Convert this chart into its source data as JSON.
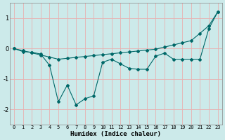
{
  "xlabel": "Humidex (Indice chaleur)",
  "background_color": "#cceaea",
  "grid_color": "#e8b0b0",
  "line_color": "#006868",
  "x_values": [
    0,
    1,
    2,
    3,
    4,
    5,
    6,
    7,
    8,
    9,
    10,
    11,
    12,
    13,
    14,
    15,
    16,
    17,
    18,
    19,
    20,
    21,
    22,
    23
  ],
  "line1_y": [
    0.0,
    -0.07,
    -0.14,
    -0.21,
    -0.28,
    -0.35,
    -0.32,
    -0.29,
    -0.26,
    -0.23,
    -0.2,
    -0.17,
    -0.14,
    -0.11,
    -0.08,
    -0.05,
    -0.02,
    0.05,
    0.12,
    0.19,
    0.26,
    0.5,
    0.75,
    1.2
  ],
  "line2_y": [
    0.0,
    -0.1,
    -0.12,
    -0.18,
    -0.55,
    -1.75,
    -1.2,
    -1.85,
    -1.65,
    -1.55,
    -0.45,
    -0.35,
    -0.5,
    -0.65,
    -0.68,
    -0.68,
    -0.25,
    -0.15,
    -0.35,
    -0.35,
    -0.35,
    -0.35,
    0.65,
    1.2
  ],
  "ylim": [
    -2.5,
    1.5
  ],
  "xlim": [
    -0.5,
    23.5
  ],
  "yticks": [
    -2,
    -1,
    0,
    1
  ],
  "xticks": [
    0,
    1,
    2,
    3,
    4,
    5,
    6,
    7,
    8,
    9,
    10,
    11,
    12,
    13,
    14,
    15,
    16,
    17,
    18,
    19,
    20,
    21,
    22,
    23
  ]
}
